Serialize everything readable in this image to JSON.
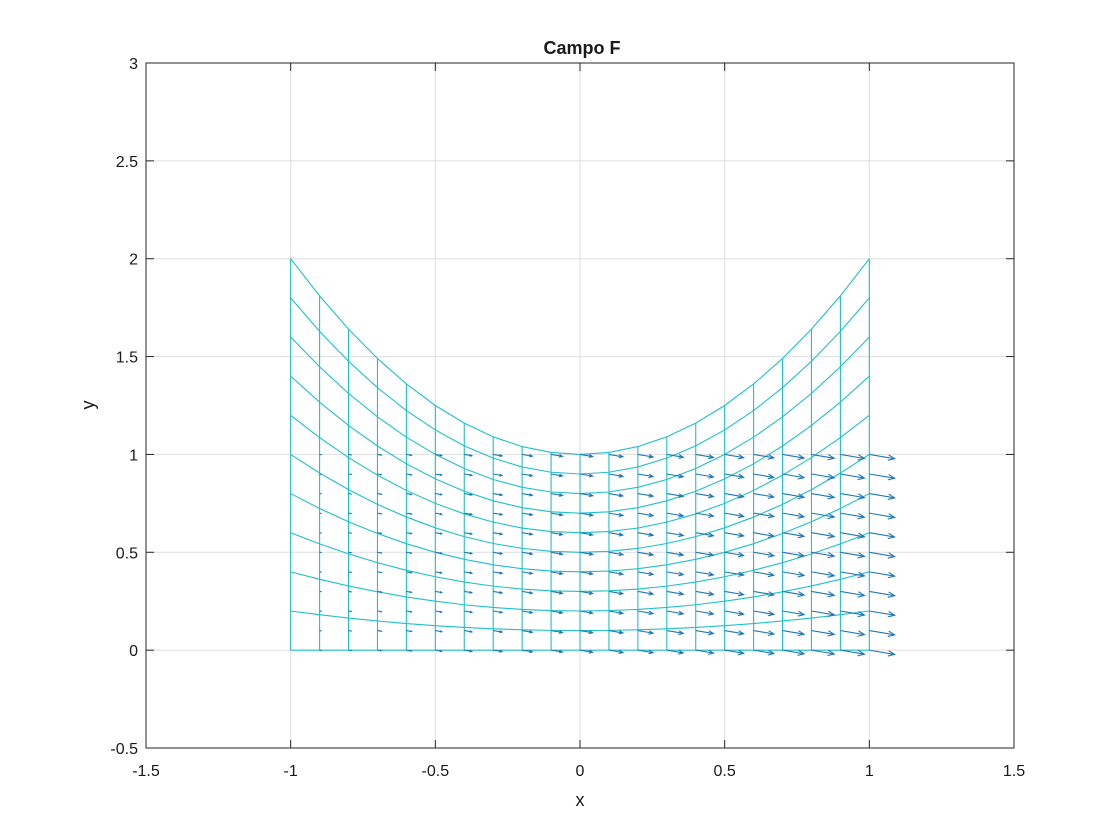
{
  "chart_data": {
    "type": "quiver",
    "title": "Campo F",
    "xlabel": "x",
    "ylabel": "y",
    "xlim": [
      -1.5,
      1.5
    ],
    "ylim": [
      -0.5,
      3
    ],
    "xticks": [
      "-1.5",
      "-1",
      "-0.5",
      "0",
      "0.5",
      "1",
      "1.5"
    ],
    "yticks": [
      "-0.5",
      "0",
      "0.5",
      "1",
      "1.5",
      "2",
      "2.5",
      "3"
    ],
    "grid": true,
    "box": true,
    "colors": {
      "mesh": "#20c0c8",
      "arrows": "#1f77b4",
      "grid": "#dedede",
      "axes": "#262626"
    },
    "mesh": {
      "x_min": -1,
      "x_max": 1,
      "x_count": 21,
      "t_min": 0,
      "t_max": 1,
      "t_count": 11,
      "surface": "y = t * (1 + x^2)"
    },
    "arrow_grid": {
      "x_min": -1,
      "x_max": 1,
      "x_count": 21,
      "y_min": 0,
      "y_max": 1,
      "y_count": 11,
      "field": "F = (x + 1, -(x + 1) / 4)",
      "autoscale": 0.9
    }
  }
}
